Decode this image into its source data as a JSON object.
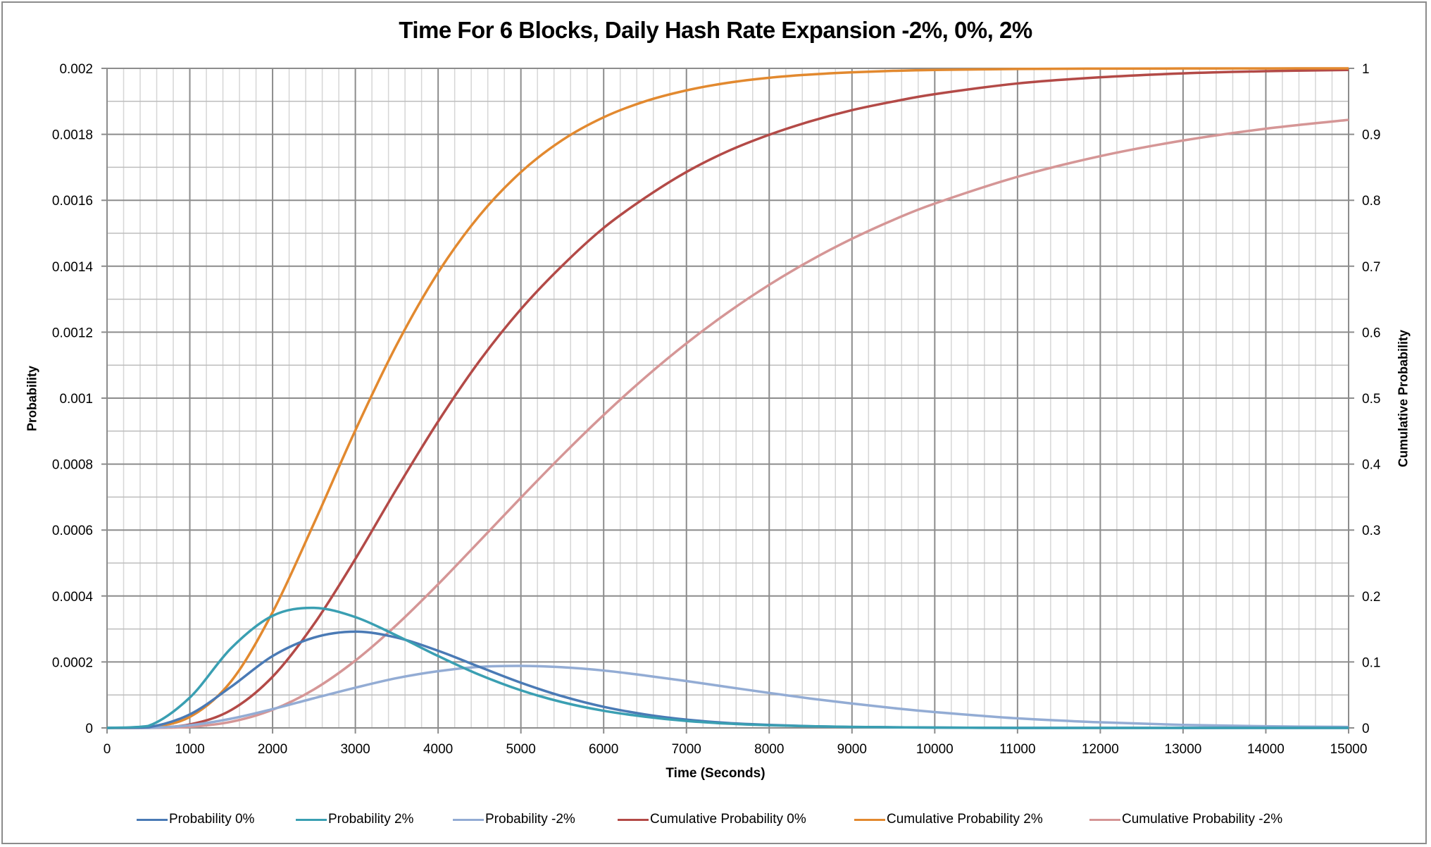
{
  "title": "Time For 6 Blocks, Daily Hash Rate Expansion -2%, 0%, 2%",
  "axes": {
    "x_title": "Time (Seconds)",
    "y_left_title": "Probability",
    "y_right_title": "Cumulative Probability",
    "x_ticks": [
      "0",
      "1000",
      "2000",
      "3000",
      "4000",
      "5000",
      "6000",
      "7000",
      "8000",
      "9000",
      "10000",
      "11000",
      "12000",
      "13000",
      "14000",
      "15000"
    ],
    "y_left_ticks": [
      "0",
      "0.0002",
      "0.0004",
      "0.0006",
      "0.0008",
      "0.001",
      "0.0012",
      "0.0014",
      "0.0016",
      "0.0018",
      "0.002"
    ],
    "y_right_ticks": [
      "0",
      "0.1",
      "0.2",
      "0.3",
      "0.4",
      "0.5",
      "0.6",
      "0.7",
      "0.8",
      "0.9",
      "1"
    ]
  },
  "legend": [
    {
      "label": "Probability 0%",
      "color": "#4a7ab5"
    },
    {
      "label": "Probability 2%",
      "color": "#3a9fb2"
    },
    {
      "label": "Probability -2%",
      "color": "#93acd4"
    },
    {
      "label": "Cumulative Probability 0%",
      "color": "#b34a47"
    },
    {
      "label": "Cumulative Probability 2%",
      "color": "#e2892f"
    },
    {
      "label": "Cumulative Probability -2%",
      "color": "#d59696"
    }
  ],
  "chart_data": {
    "type": "line",
    "title": "Time For 6 Blocks, Daily Hash Rate Expansion -2%, 0%, 2%",
    "xlabel": "Time (Seconds)",
    "ylabel": "Probability",
    "ylabel_right": "Cumulative Probability",
    "xlim": [
      0,
      15000
    ],
    "ylim": [
      0,
      0.002
    ],
    "ylim_right": [
      0,
      1
    ],
    "grid": true,
    "legend_position": "bottom",
    "x": [
      0,
      500,
      1000,
      1500,
      2000,
      2500,
      3000,
      3500,
      4000,
      4500,
      5000,
      5500,
      6000,
      6500,
      7000,
      7500,
      8000,
      8500,
      9000,
      9500,
      10000,
      11000,
      12000,
      13000,
      14000,
      15000
    ],
    "series": [
      {
        "name": "Probability 0%",
        "axis": "left",
        "color": "#4a7ab5",
        "values": [
          0,
          2e-06,
          4.1e-05,
          0.000125,
          0.000218,
          0.000274,
          0.000292,
          0.000274,
          0.000234,
          0.000185,
          0.000137,
          9.6e-05,
          6.4e-05,
          4.1e-05,
          2.5e-05,
          1.5e-05,
          9e-06,
          5e-06,
          3e-06,
          2e-06,
          1e-06,
          0,
          0,
          0,
          0,
          0
        ]
      },
      {
        "name": "Probability 2%",
        "axis": "left",
        "color": "#3a9fb2",
        "values": [
          0,
          6e-06,
          9.2e-05,
          0.000242,
          0.00034,
          0.000364,
          0.000336,
          0.00028,
          0.000218,
          0.000161,
          0.000114,
          7.8e-05,
          5.2e-05,
          3.4e-05,
          2.1e-05,
          1.3e-05,
          8e-06,
          5e-06,
          3e-06,
          2e-06,
          1e-06,
          0,
          0,
          0,
          0,
          0
        ]
      },
      {
        "name": "Probability -2%",
        "axis": "left",
        "color": "#93acd4",
        "values": [
          0,
          0,
          8e-06,
          2.8e-05,
          5.7e-05,
          9e-05,
          0.000122,
          0.000151,
          0.000172,
          0.000185,
          0.000188,
          0.000184,
          0.000174,
          0.000159,
          0.000142,
          0.000124,
          0.000106,
          8.9e-05,
          7.4e-05,
          6e-05,
          4.8e-05,
          2.9e-05,
          1.7e-05,
          9e-06,
          5e-06,
          3e-06
        ]
      },
      {
        "name": "Cumulative Probability 0%",
        "axis": "right",
        "color": "#b34a47",
        "values": [
          0,
          0.0003,
          0.0053,
          0.0271,
          0.0776,
          0.1574,
          0.2562,
          0.3627,
          0.4646,
          0.5564,
          0.6349,
          0.7009,
          0.7581,
          0.8037,
          0.8429,
          0.8744,
          0.8993,
          0.9198,
          0.9366,
          0.9497,
          0.9609,
          0.9771,
          0.9865,
          0.9924,
          0.9957,
          0.9976
        ]
      },
      {
        "name": "Cumulative Probability 2%",
        "axis": "right",
        "color": "#e2892f",
        "values": [
          0,
          0.0012,
          0.0167,
          0.0708,
          0.1753,
          0.3101,
          0.4512,
          0.581,
          0.6905,
          0.7769,
          0.8427,
          0.8912,
          0.9258,
          0.95,
          0.9666,
          0.9781,
          0.9857,
          0.9907,
          0.994,
          0.9962,
          0.9976,
          0.999,
          0.9996,
          0.9998,
          0.9999,
          1.0
        ]
      },
      {
        "name": "Cumulative Probability -2%",
        "axis": "right",
        "color": "#d59696",
        "values": [
          0,
          0,
          0.0016,
          0.0093,
          0.0275,
          0.0584,
          0.1021,
          0.1563,
          0.2178,
          0.2832,
          0.3491,
          0.4134,
          0.4744,
          0.5312,
          0.5831,
          0.6299,
          0.6718,
          0.7089,
          0.7416,
          0.7702,
          0.795,
          0.8356,
          0.8669,
          0.8906,
          0.9085,
          0.9219
        ]
      }
    ]
  }
}
